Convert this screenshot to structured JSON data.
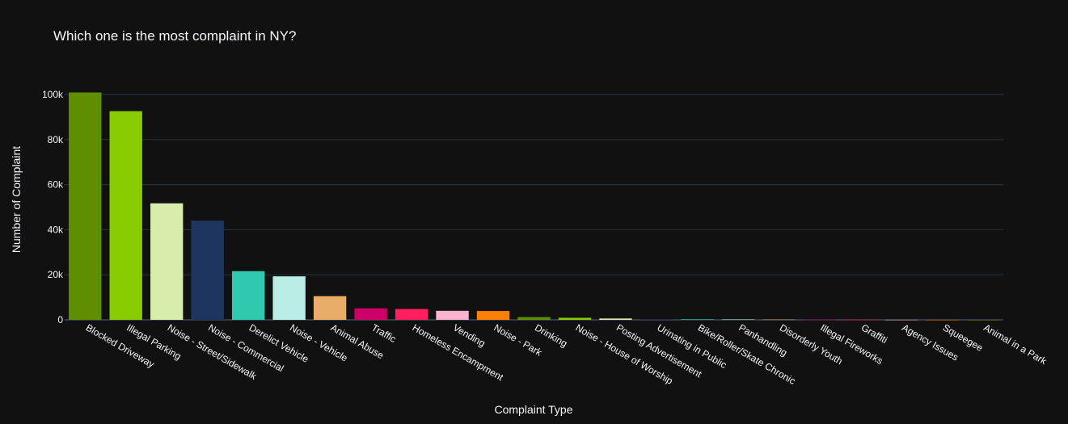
{
  "chart_data": {
    "type": "bar",
    "title": "Which one is the most complaint in NY?",
    "xlabel": "Complaint Type",
    "ylabel": "Number of Complaint",
    "ylim": [
      0,
      100000
    ],
    "yticks": [
      0,
      20000,
      40000,
      60000,
      80000,
      100000
    ],
    "ytick_labels": [
      "0",
      "20k",
      "40k",
      "60k",
      "80k",
      "100k"
    ],
    "grid": true,
    "categories": [
      "Blocked Driveway",
      "Illegal Parking",
      "Noise - Street/Sidewalk",
      "Noise - Commercial",
      "Derelict Vehicle",
      "Noise - Vehicle",
      "Animal Abuse",
      "Traffic",
      "Homeless Encampment",
      "Vending",
      "Noise - Park",
      "Drinking",
      "Noise - House of Worship",
      "Posting Advertisement",
      "Urinating in Public",
      "Bike/Roller/Skate Chronic",
      "Panhandling",
      "Disorderly Youth",
      "Illegal Fireworks",
      "Graffiti",
      "Agency Issues",
      "Squeegee",
      "Animal in a Park"
    ],
    "values": [
      100900,
      92600,
      51700,
      44000,
      21600,
      19300,
      10500,
      5100,
      4800,
      4000,
      3900,
      1200,
      900,
      600,
      300,
      250,
      200,
      150,
      100,
      80,
      50,
      30,
      10
    ],
    "colors": [
      "#5f8f00",
      "#88cc00",
      "#d8edac",
      "#1e3560",
      "#2ec9ae",
      "#b9ede5",
      "#e8ad68",
      "#cc0066",
      "#ff1f5f",
      "#ffb3cc",
      "#ff8000",
      "#5f8f00",
      "#88cc00",
      "#d8edac",
      "#1e3560",
      "#2ec9ae",
      "#b9ede5",
      "#e8ad68",
      "#cc0066",
      "#ff1f5f",
      "#ffb3cc",
      "#ff8000",
      "#5f8f00"
    ]
  }
}
